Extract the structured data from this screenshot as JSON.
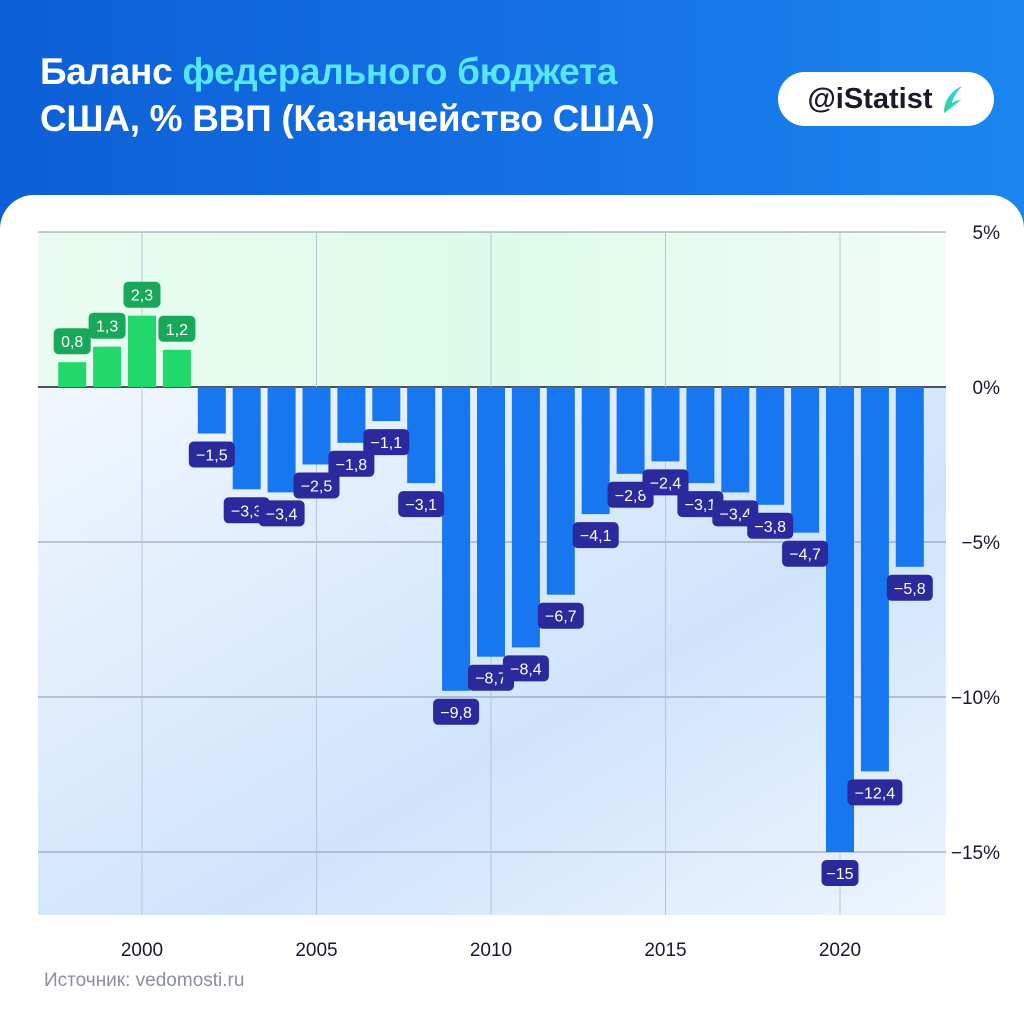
{
  "header": {
    "title_part1": "Баланс ",
    "title_accent": "федерального бюджета",
    "title_line2": "США, % ВВП (Казначейство США)",
    "badge": "@iStatist",
    "badge_icon": "istatist-logo-icon"
  },
  "footer": {
    "source": "Источник: vedomosti.ru"
  },
  "colors": {
    "header_bg": "#1573e6",
    "accent_text": "#56e6ff",
    "positive_bar": "#21d96b",
    "positive_label": "#17a85a",
    "negative_bar": "#1677f0",
    "negative_label": "#2a2a9c",
    "positive_zone": "#dcfbea",
    "negative_zone": "#e4effd"
  },
  "chart_data": {
    "type": "bar",
    "title": "Баланс федерального бюджета США, % ВВП (Казначейство США)",
    "x": [
      1998,
      1999,
      2000,
      2001,
      2002,
      2003,
      2004,
      2005,
      2006,
      2007,
      2008,
      2009,
      2010,
      2011,
      2012,
      2013,
      2014,
      2015,
      2016,
      2017,
      2018,
      2019,
      2020,
      2021,
      2022
    ],
    "values": [
      0.8,
      1.3,
      2.3,
      1.2,
      -1.5,
      -3.3,
      -3.4,
      -2.5,
      -1.8,
      -1.1,
      -3.1,
      -9.8,
      -8.7,
      -8.4,
      -6.7,
      -4.1,
      -2.8,
      -2.4,
      -3.1,
      -3.4,
      -3.8,
      -4.7,
      -15,
      -12.4,
      -5.8
    ],
    "data_labels": [
      "0,8",
      "1,3",
      "2,3",
      "1,2",
      "−1,5",
      "−3,3",
      "−3,4",
      "−2,5",
      "−1,8",
      "−1,1",
      "−3,1",
      "−9,8",
      "−8,7",
      "−8,4",
      "−6,7",
      "−4,1",
      "−2,8",
      "−2,4",
      "−3,1",
      "−3,4",
      "−3,8",
      "−4,7",
      "−15",
      "−12,4",
      "−5,8"
    ],
    "x_ticks": [
      2000,
      2005,
      2010,
      2015,
      2020
    ],
    "x_tick_labels": [
      "2000",
      "2005",
      "2010",
      "2015",
      "2020"
    ],
    "y_ticks": [
      5,
      0,
      -5,
      -10,
      -15
    ],
    "y_tick_labels": [
      "5%",
      "0%",
      "−5%",
      "−10%",
      "−15%"
    ],
    "ylim": [
      -17,
      5
    ],
    "xlim": [
      1997,
      2023
    ],
    "grid": true,
    "y_axis_position": "right",
    "xlabel": "",
    "ylabel": ""
  }
}
